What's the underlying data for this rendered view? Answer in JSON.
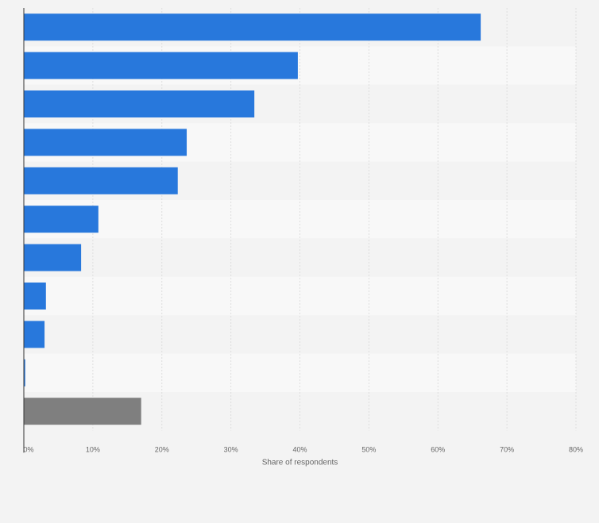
{
  "chart_data": {
    "type": "bar",
    "orientation": "horizontal",
    "title": "",
    "xlabel": "Share of respondents",
    "ylabel": "",
    "xlim": [
      0,
      80
    ],
    "x_ticks": [
      "0%",
      "10%",
      "20%",
      "30%",
      "40%",
      "50%",
      "60%",
      "70%",
      "80%"
    ],
    "x_tick_values": [
      0,
      10,
      20,
      30,
      40,
      50,
      60,
      70,
      80
    ],
    "grid": true,
    "legend": "none",
    "values": [
      66.2,
      39.7,
      33.4,
      23.6,
      22.3,
      10.8,
      8.3,
      3.2,
      3.0,
      0.2,
      17.0
    ],
    "bar_colors": [
      "#2878dc",
      "#2878dc",
      "#2878dc",
      "#2878dc",
      "#2878dc",
      "#2878dc",
      "#2878dc",
      "#2878dc",
      "#2878dc",
      "#2878dc",
      "#7f7f7f"
    ]
  },
  "colors": {
    "background": "#f3f3f3",
    "band_light": "#f8f8f8",
    "band_dark": "#f3f3f3",
    "grid": "#dedede",
    "axis": "#333333",
    "bar_primary": "#2878dc",
    "bar_other": "#7f7f7f"
  }
}
